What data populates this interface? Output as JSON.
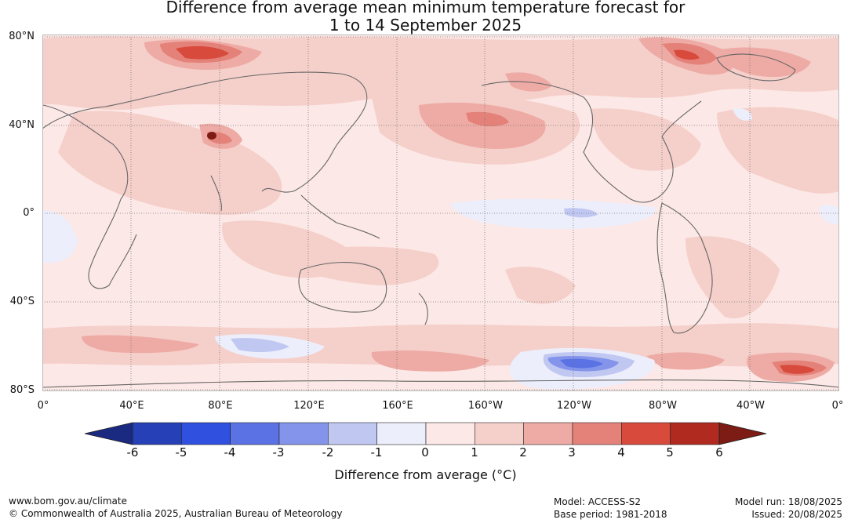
{
  "title": {
    "line1": "Difference from average mean minimum temperature forecast for",
    "line2": "1 to 14 September 2025"
  },
  "lat_labels": [
    "80°N",
    "40°N",
    "0°",
    "40°S",
    "80°S"
  ],
  "lon_labels": [
    "0°",
    "40°E",
    "80°E",
    "120°E",
    "160°E",
    "160°W",
    "120°W",
    "80°W",
    "40°W",
    "0°"
  ],
  "colorbar": {
    "ticks": [
      "-6",
      "-5",
      "-4",
      "-3",
      "-2",
      "-1",
      "0",
      "1",
      "2",
      "3",
      "4",
      "5",
      "6"
    ],
    "colors": [
      "#1a2a80",
      "#2640b8",
      "#3050e0",
      "#5a72e4",
      "#8494ea",
      "#c0c8f2",
      "#eceefb",
      "#fce8e6",
      "#f5cfca",
      "#eeaaa4",
      "#e4827a",
      "#d84a3c",
      "#b02a20",
      "#7c1c14"
    ],
    "label": "Difference from average (°C)"
  },
  "map": {
    "ocean_color": "#fce8e6",
    "coast_color": "#666666"
  },
  "footer": {
    "url": "www.bom.gov.au/climate",
    "copyright": "© Commonwealth of Australia 2025, Australian Bureau of Meteorology",
    "model": "Model: ACCESS-S2",
    "base_period": "Base period: 1981-2018",
    "model_run": "Model run: 18/08/2025",
    "issued": "Issued: 20/08/2025"
  }
}
